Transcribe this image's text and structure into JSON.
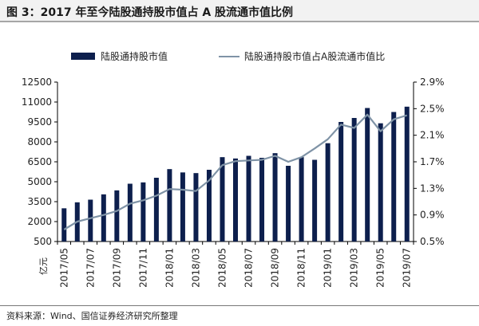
{
  "figure_title": "图 3：2017 年至今陆股通持股市值占 A 股流通市值比例",
  "source": "资料来源：Wind、国信证券经济研究所整理",
  "colors": {
    "bar": "#0d1f4d",
    "line": "#7f93a6",
    "axis": "#000000"
  },
  "chart_data": {
    "type": "bar",
    "title": "",
    "y_left_unit": "亿元",
    "legend_position": "top",
    "grid": false,
    "categories": [
      "2017/05",
      "2017/06",
      "2017/07",
      "2017/08",
      "2017/09",
      "2017/10",
      "2017/11",
      "2017/12",
      "2018/01",
      "2018/02",
      "2018/03",
      "2018/04",
      "2018/05",
      "2018/06",
      "2018/07",
      "2018/08",
      "2018/09",
      "2018/10",
      "2018/11",
      "2018/12",
      "2019/01",
      "2019/02",
      "2019/03",
      "2019/04",
      "2019/05",
      "2019/06",
      "2019/07"
    ],
    "x_tick_labels": [
      "2017/05",
      "2017/07",
      "2017/09",
      "2017/11",
      "2018/01",
      "2018/03",
      "2018/05",
      "2018/07",
      "2018/09",
      "2018/11",
      "2019/01",
      "2019/03",
      "2019/05",
      "2019/07"
    ],
    "y_left": {
      "min": 500,
      "max": 12500,
      "ticks": [
        500,
        2000,
        3500,
        5000,
        6500,
        8000,
        9500,
        11000,
        12500
      ]
    },
    "y_right": {
      "min": 0.5,
      "max": 2.9,
      "ticks": [
        0.5,
        0.9,
        1.3,
        1.7,
        2.1,
        2.5,
        2.9
      ],
      "tick_labels": [
        "0.5%",
        "0.9%",
        "1.3%",
        "1.7%",
        "2.1%",
        "2.5%",
        "2.9%"
      ]
    },
    "series": [
      {
        "name": "陆股通持股市值",
        "kind": "bar",
        "axis": "left",
        "values": [
          3000,
          3450,
          3650,
          4050,
          4350,
          4850,
          4950,
          5300,
          5950,
          5700,
          5650,
          5900,
          6850,
          6750,
          6950,
          6800,
          7150,
          6200,
          6850,
          6650,
          7900,
          9500,
          9800,
          10550,
          9400,
          10250,
          10650
        ]
      },
      {
        "name": "陆股通持股市值占A股流通市值比",
        "kind": "line",
        "axis": "right",
        "values": [
          0.68,
          0.8,
          0.85,
          0.9,
          0.96,
          1.07,
          1.12,
          1.19,
          1.29,
          1.28,
          1.26,
          1.42,
          1.65,
          1.71,
          1.72,
          1.73,
          1.79,
          1.7,
          1.77,
          1.9,
          2.04,
          2.26,
          2.21,
          2.41,
          2.16,
          2.34,
          2.4
        ]
      }
    ]
  }
}
